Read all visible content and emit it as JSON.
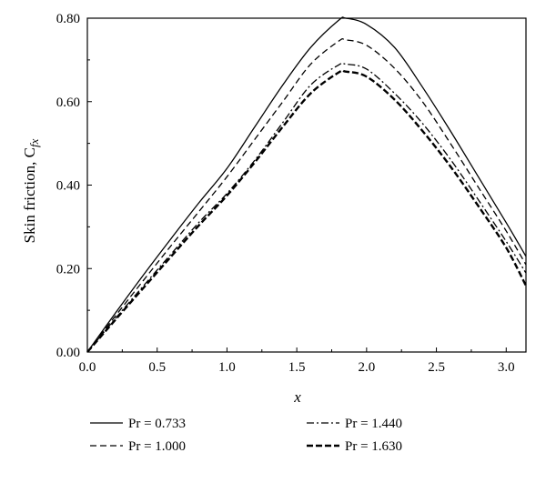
{
  "chart_data": {
    "type": "line",
    "title": "",
    "xlabel": "x",
    "ylabel": "Skin friction, C",
    "ylabel_subscript": "fx",
    "xlim": [
      0,
      3.14159
    ],
    "ylim": [
      0,
      0.8
    ],
    "x_ticks": [
      "0.0",
      "0.5",
      "1.0",
      "1.5",
      "2.0",
      "2.5",
      "3.0"
    ],
    "y_ticks": [
      "0.00",
      "0.20",
      "0.40",
      "0.60",
      "0.80"
    ],
    "grid": false,
    "legend_position": "below",
    "x": [
      0.0,
      0.2,
      0.4,
      0.6,
      0.8,
      1.0,
      1.2,
      1.4,
      1.6,
      1.8,
      1.85,
      2.0,
      2.2,
      2.4,
      2.6,
      2.8,
      3.0,
      3.14
    ],
    "series": [
      {
        "name": "Pr = 0.733",
        "style": "solid",
        "values": [
          0.0,
          0.093,
          0.184,
          0.272,
          0.358,
          0.44,
          0.54,
          0.64,
          0.73,
          0.795,
          0.8,
          0.785,
          0.73,
          0.635,
          0.53,
          0.42,
          0.31,
          0.23
        ]
      },
      {
        "name": "Pr = 1.000",
        "style": "dashed",
        "values": [
          0.0,
          0.086,
          0.171,
          0.255,
          0.337,
          0.42,
          0.51,
          0.6,
          0.69,
          0.745,
          0.748,
          0.735,
          0.68,
          0.6,
          0.5,
          0.395,
          0.29,
          0.21
        ]
      },
      {
        "name": "Pr = 1.440",
        "style": "dashdot",
        "values": [
          0.0,
          0.08,
          0.158,
          0.235,
          0.311,
          0.38,
          0.46,
          0.55,
          0.64,
          0.688,
          0.69,
          0.678,
          0.62,
          0.548,
          0.462,
          0.365,
          0.265,
          0.19
        ]
      },
      {
        "name": "Pr = 1.630",
        "style": "bold-dashed",
        "values": [
          0.0,
          0.077,
          0.153,
          0.229,
          0.304,
          0.375,
          0.455,
          0.54,
          0.62,
          0.67,
          0.672,
          0.66,
          0.605,
          0.53,
          0.445,
          0.35,
          0.25,
          0.16
        ]
      }
    ]
  }
}
